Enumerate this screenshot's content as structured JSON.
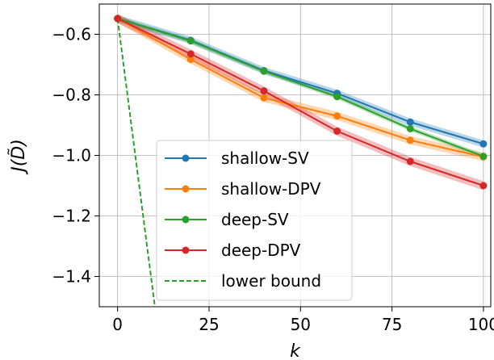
{
  "chart_data": {
    "type": "line",
    "title": "",
    "xlabel": "k",
    "ylabel": "J(D̃)",
    "xlim": [
      -5,
      102
    ],
    "ylim": [
      -1.5,
      -0.5
    ],
    "xticks": [
      0,
      25,
      50,
      75,
      100
    ],
    "yticks": [
      -1.4,
      -1.2,
      -1.0,
      -0.8,
      -0.6
    ],
    "xtick_labels": [
      "0",
      "25",
      "50",
      "75",
      "100"
    ],
    "ytick_labels": [
      "−1.4",
      "−1.2",
      "−1.0",
      "−0.8",
      "−0.6"
    ],
    "grid": true,
    "legend_position": "lower-center",
    "x": [
      0,
      20,
      40,
      60,
      80,
      100
    ],
    "series": [
      {
        "name": "shallow-SV",
        "color": "#1f77b4",
        "values": [
          -0.548,
          -0.62,
          -0.72,
          -0.795,
          -0.89,
          -0.962
        ],
        "band": 0.012,
        "style": "solid-marker"
      },
      {
        "name": "shallow-DPV",
        "color": "#ff7f0e",
        "values": [
          -0.548,
          -0.683,
          -0.81,
          -0.87,
          -0.95,
          -1.005
        ],
        "band": 0.014,
        "style": "solid-marker"
      },
      {
        "name": "deep-SV",
        "color": "#2ca02c",
        "values": [
          -0.548,
          -0.622,
          -0.722,
          -0.806,
          -0.912,
          -1.003
        ],
        "band": 0.008,
        "style": "solid-marker"
      },
      {
        "name": "deep-DPV",
        "color": "#d62728",
        "values": [
          -0.548,
          -0.665,
          -0.787,
          -0.92,
          -1.02,
          -1.1
        ],
        "band": 0.015,
        "style": "solid-marker"
      },
      {
        "name": "lower bound",
        "color": "#2ca02c",
        "x": [
          0,
          10.2
        ],
        "values": [
          -0.548,
          -1.5
        ],
        "style": "dashed"
      }
    ]
  }
}
